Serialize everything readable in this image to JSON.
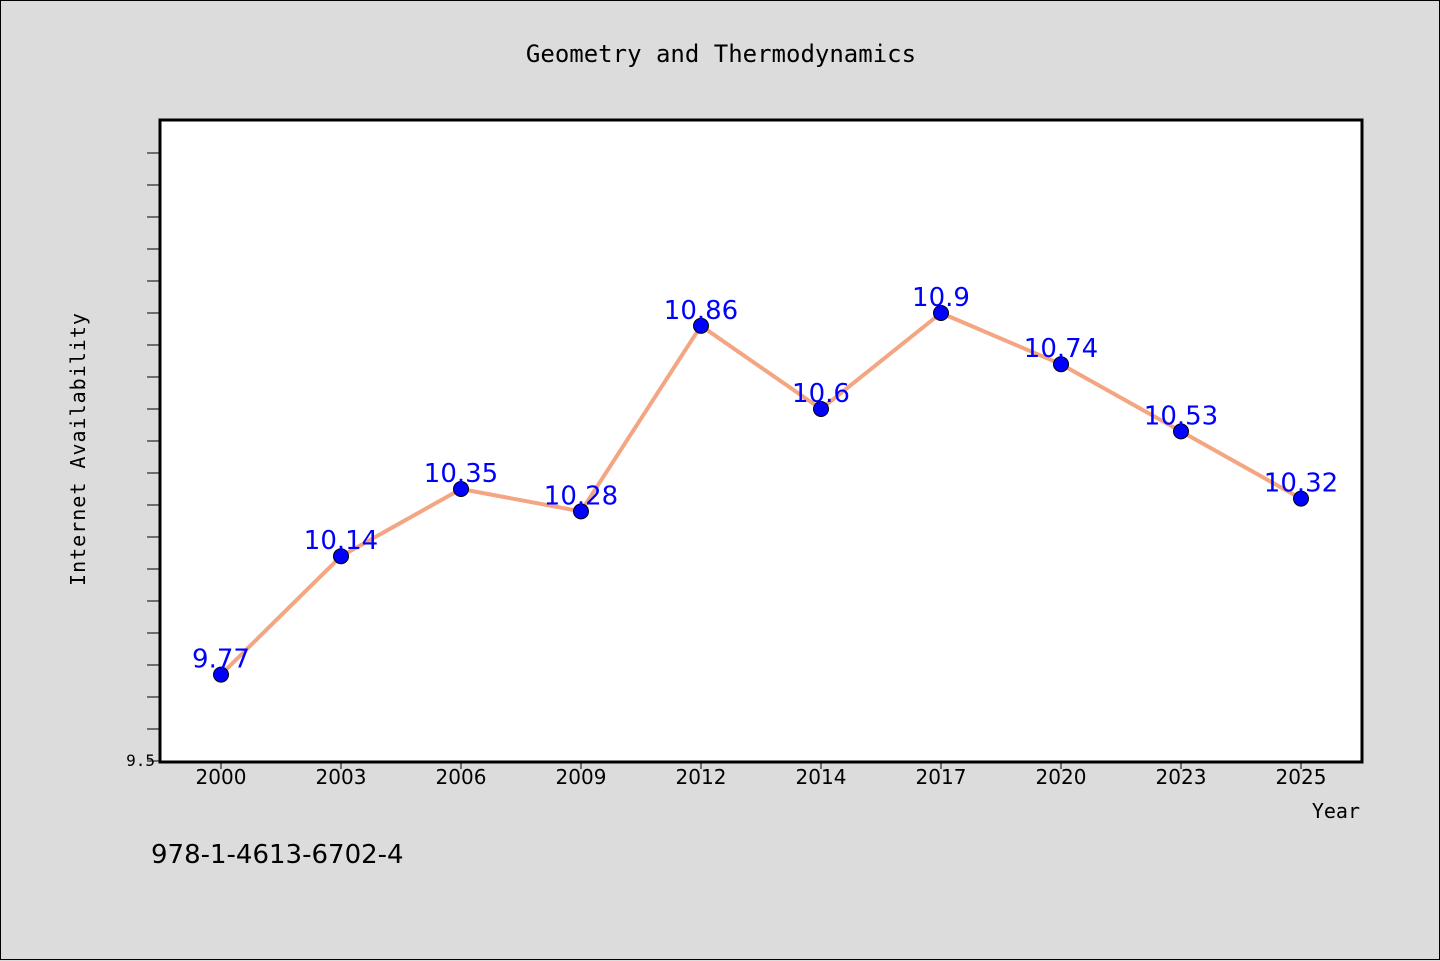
{
  "chart_data": {
    "type": "line",
    "title": "Geometry and Thermodynamics",
    "xlabel": "Year",
    "ylabel": "Internet Availability",
    "categories": [
      "2000",
      "2003",
      "2006",
      "2009",
      "2012",
      "2014",
      "2017",
      "2020",
      "2023",
      "2025"
    ],
    "series": [
      {
        "values": [
          9.77,
          10.14,
          10.35,
          10.28,
          10.86,
          10.6,
          10.9,
          10.74,
          10.53,
          10.32
        ],
        "data_labels": [
          "9.77",
          "10.14",
          "10.35",
          "10.28",
          "10.86",
          "10.6",
          "10.9",
          "10.74",
          "10.53",
          "10.32"
        ],
        "line_color": "#f4a582",
        "marker_color": "#0000ff",
        "label_color": "#0000ff"
      }
    ],
    "ylim": [
      9.5,
      11.5
    ],
    "y_tick_labels": [
      "9.5"
    ],
    "grid": false,
    "legend": "none"
  },
  "footer": {
    "isbn": "978-1-4613-6702-4"
  },
  "colors": {
    "background": "#dcdcdc",
    "plot_background": "#ffffff",
    "axis": "#000000"
  }
}
